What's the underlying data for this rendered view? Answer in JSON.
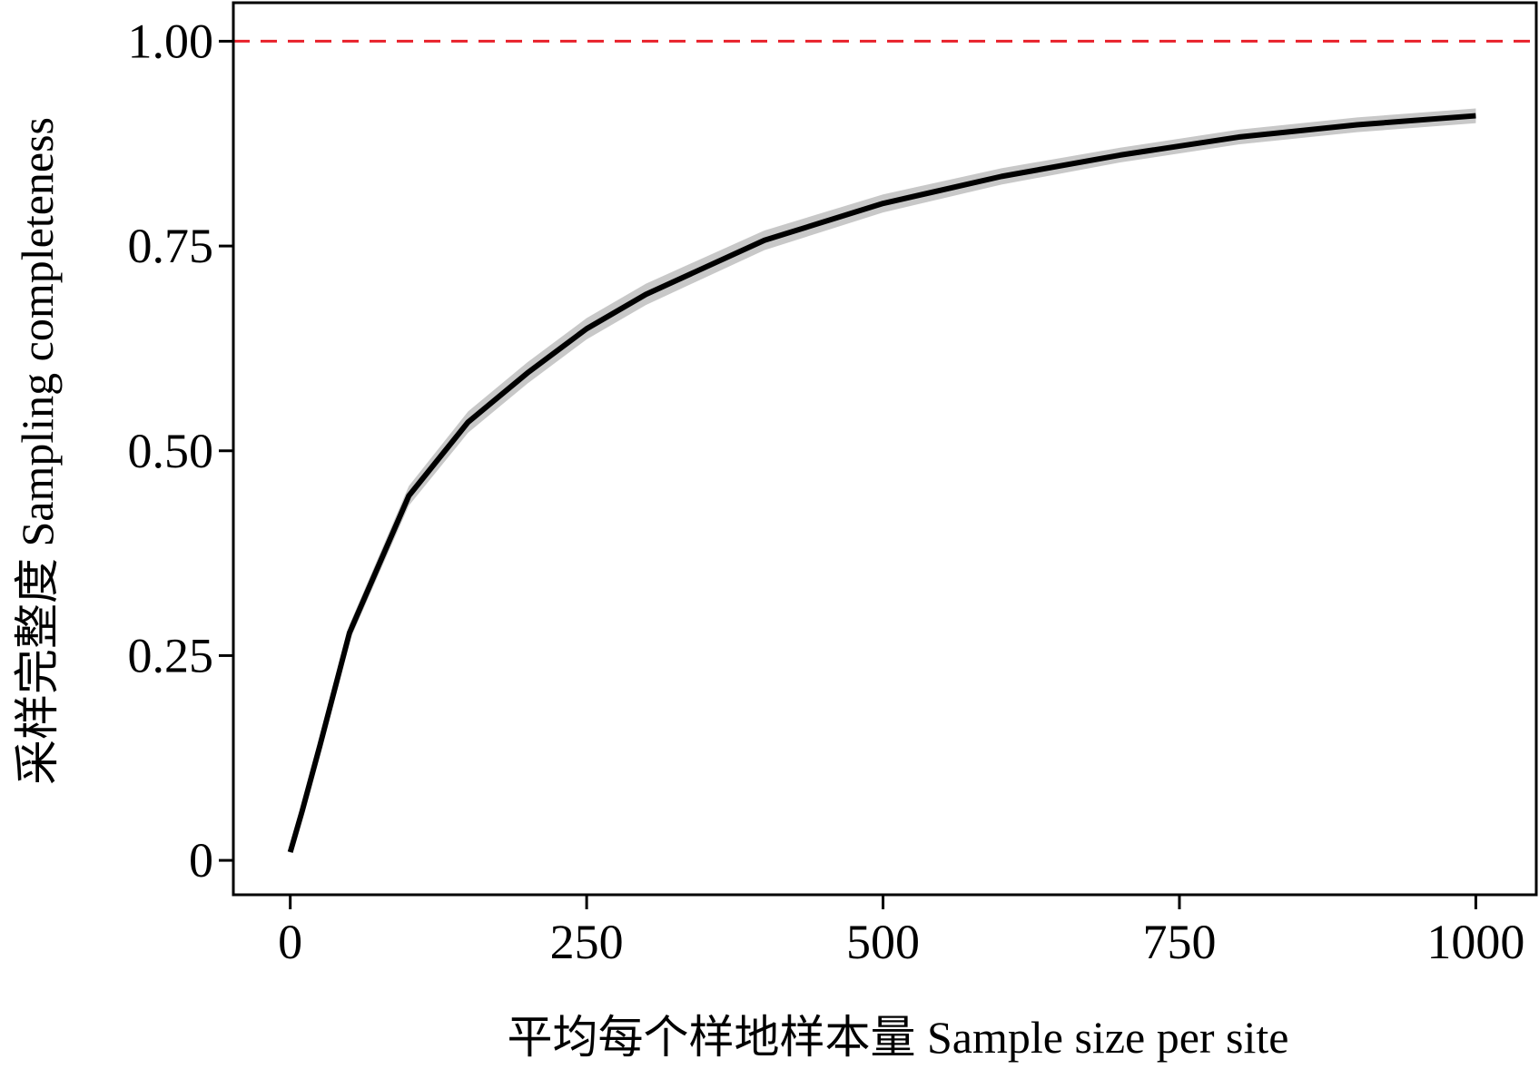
{
  "chart_data": {
    "type": "line",
    "x_label": "平均每个样地样本量 Sample size per site",
    "y_label": "采样完整度 Sampling completeness",
    "x": [
      0,
      10,
      25,
      50,
      100,
      150,
      200,
      250,
      300,
      400,
      500,
      600,
      700,
      800,
      900,
      1000
    ],
    "series": [
      {
        "color": "#000000",
        "values": [
          0.01,
          0.06,
          0.14,
          0.278,
          0.445,
          0.535,
          0.595,
          0.649,
          0.691,
          0.757,
          0.802,
          0.835,
          0.861,
          0.883,
          0.898,
          0.909
        ],
        "band_color": "#c8c8c8",
        "lower": [
          0.008,
          0.055,
          0.133,
          0.268,
          0.433,
          0.522,
          0.582,
          0.636,
          0.678,
          0.745,
          0.791,
          0.825,
          0.852,
          0.874,
          0.889,
          0.9
        ],
        "upper": [
          0.012,
          0.065,
          0.147,
          0.288,
          0.457,
          0.548,
          0.608,
          0.662,
          0.704,
          0.769,
          0.813,
          0.845,
          0.87,
          0.892,
          0.907,
          0.918
        ]
      }
    ],
    "reference_line": {
      "value": 1,
      "color": "#e8202a"
    },
    "xlim": [
      -48,
      1051
    ],
    "ylim": [
      -0.042,
      1.047
    ],
    "xticks": [
      0,
      250,
      500,
      750,
      1000
    ],
    "yticks": [
      0,
      0.25,
      {
        "value": 0.5,
        "label": "0.50"
      },
      0.75,
      {
        "value": 1,
        "label": "1.00"
      }
    ]
  }
}
